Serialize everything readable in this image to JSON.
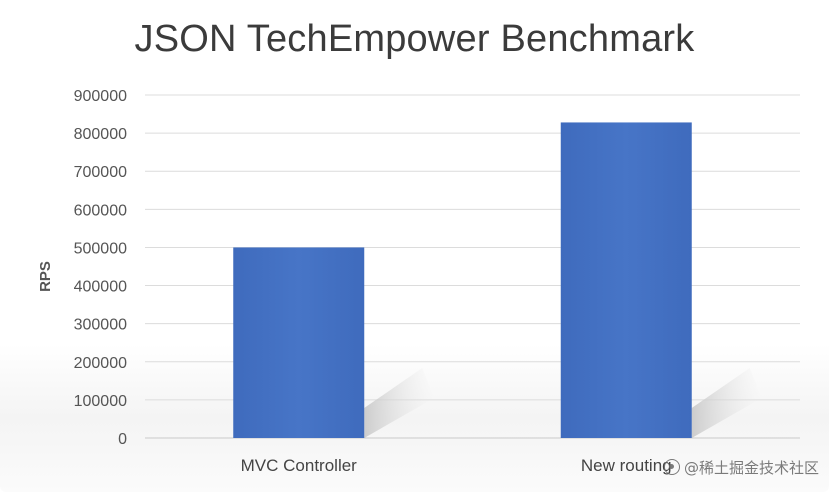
{
  "chart_data": {
    "type": "bar",
    "title": "JSON TechEmpower Benchmark",
    "xlabel": "",
    "ylabel": "RPS",
    "categories": [
      "MVC Controller",
      "New routing"
    ],
    "values": [
      500000,
      828000
    ],
    "ylim": [
      0,
      900000
    ],
    "yticks": [
      0,
      100000,
      200000,
      300000,
      400000,
      500000,
      600000,
      700000,
      800000,
      900000
    ],
    "grid": true,
    "legend": "none",
    "bar_color": "#4472c4"
  },
  "watermark": {
    "text": "@稀土掘金技术社区",
    "icon": "watermark-logo-icon"
  }
}
